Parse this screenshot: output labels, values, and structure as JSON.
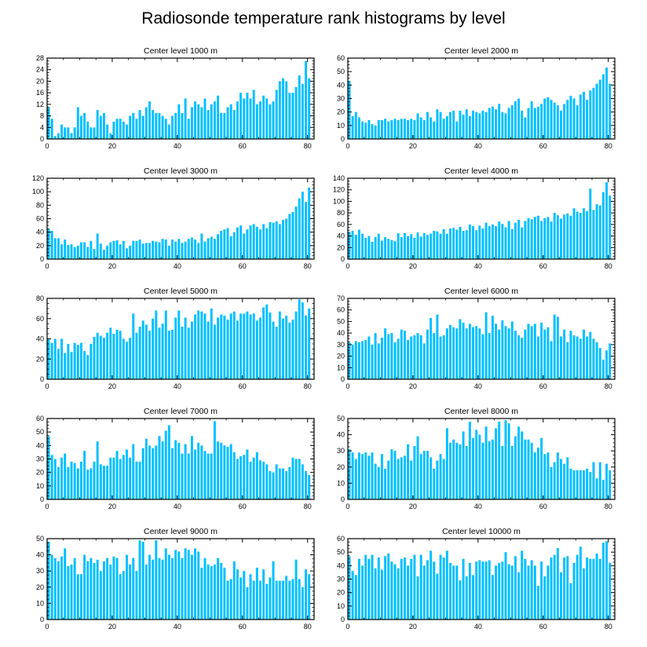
{
  "figure": {
    "title": "Radiosonde temperature rank histograms by level",
    "bar_color": "#00bfff",
    "frame_color": "#000000"
  },
  "chart_data": [
    {
      "type": "bar",
      "title": "Center level 1000 m",
      "x_ticks": [
        0,
        20,
        40,
        60,
        80
      ],
      "xlim": [
        0,
        82
      ],
      "y_ticks": [
        0,
        4,
        8,
        12,
        16,
        20,
        24,
        28
      ],
      "ylim": [
        0,
        28
      ],
      "values": [
        11,
        7,
        1,
        2,
        5,
        4,
        4,
        2,
        4,
        11,
        8,
        9,
        6,
        4,
        4,
        10,
        8,
        9,
        5,
        2,
        6,
        7,
        7,
        6,
        5,
        8,
        9,
        7,
        10,
        8,
        11,
        13,
        10,
        9,
        9,
        8,
        7,
        5,
        8,
        9,
        12,
        9,
        14,
        7,
        11,
        13,
        12,
        11,
        14,
        10,
        12,
        13,
        15,
        9,
        9,
        11,
        12,
        10,
        13,
        16,
        14,
        16,
        14,
        17,
        12,
        13,
        15,
        14,
        12,
        13,
        17,
        20,
        21,
        20,
        16,
        16,
        18,
        22,
        19,
        27,
        21
      ]
    },
    {
      "type": "bar",
      "title": "Center level 2000 m",
      "x_ticks": [
        0,
        20,
        40,
        60,
        80
      ],
      "xlim": [
        0,
        82
      ],
      "y_ticks": [
        0,
        10,
        20,
        30,
        40,
        50,
        60
      ],
      "ylim": [
        0,
        60
      ],
      "values": [
        43,
        17,
        20,
        16,
        13,
        12,
        14,
        11,
        10,
        14,
        14,
        15,
        13,
        14,
        15,
        14,
        15,
        15,
        14,
        15,
        14,
        19,
        16,
        14,
        20,
        16,
        13,
        22,
        20,
        15,
        17,
        20,
        21,
        13,
        21,
        18,
        22,
        17,
        21,
        20,
        19,
        21,
        20,
        23,
        24,
        22,
        26,
        20,
        19,
        23,
        25,
        28,
        30,
        21,
        16,
        23,
        28,
        23,
        24,
        26,
        30,
        31,
        29,
        27,
        25,
        21,
        26,
        29,
        32,
        30,
        25,
        33,
        35,
        29,
        36,
        38,
        41,
        44,
        48,
        53,
        41
      ]
    },
    {
      "type": "bar",
      "title": "Center level 3000 m",
      "x_ticks": [
        0,
        20,
        40,
        60,
        80
      ],
      "xlim": [
        0,
        82
      ],
      "y_ticks": [
        0,
        20,
        40,
        60,
        80,
        100,
        120
      ],
      "ylim": [
        0,
        120
      ],
      "values": [
        45,
        42,
        31,
        31,
        22,
        29,
        21,
        22,
        18,
        20,
        25,
        25,
        18,
        27,
        15,
        38,
        23,
        14,
        20,
        25,
        27,
        28,
        22,
        27,
        16,
        20,
        27,
        27,
        29,
        23,
        24,
        24,
        27,
        26,
        25,
        30,
        29,
        20,
        29,
        26,
        30,
        24,
        26,
        30,
        32,
        29,
        24,
        38,
        26,
        31,
        33,
        30,
        37,
        42,
        44,
        46,
        34,
        40,
        47,
        50,
        38,
        44,
        50,
        52,
        48,
        44,
        52,
        46,
        55,
        54,
        56,
        52,
        58,
        60,
        67,
        70,
        78,
        90,
        100,
        85,
        106
      ]
    },
    {
      "type": "bar",
      "title": "Center level 4000 m",
      "x_ticks": [
        0,
        20,
        40,
        60,
        80
      ],
      "xlim": [
        0,
        82
      ],
      "y_ticks": [
        0,
        20,
        40,
        60,
        80,
        100,
        120,
        140
      ],
      "ylim": [
        0,
        140
      ],
      "values": [
        47,
        49,
        42,
        51,
        44,
        37,
        40,
        30,
        38,
        44,
        32,
        38,
        35,
        33,
        31,
        45,
        38,
        45,
        40,
        43,
        37,
        46,
        39,
        45,
        42,
        44,
        49,
        48,
        44,
        52,
        44,
        53,
        54,
        51,
        56,
        49,
        50,
        60,
        57,
        50,
        58,
        53,
        63,
        57,
        60,
        57,
        65,
        61,
        55,
        66,
        52,
        63,
        68,
        55,
        66,
        71,
        69,
        73,
        75,
        66,
        71,
        73,
        65,
        80,
        76,
        70,
        77,
        79,
        75,
        88,
        82,
        80,
        88,
        83,
        122,
        85,
        95,
        93,
        116,
        133,
        110
      ]
    },
    {
      "type": "bar",
      "title": "Center level 5000 m",
      "x_ticks": [
        0,
        20,
        40,
        60,
        80
      ],
      "xlim": [
        0,
        82
      ],
      "y_ticks": [
        0,
        20,
        40,
        60,
        80
      ],
      "ylim": [
        0,
        80
      ],
      "values": [
        40,
        36,
        40,
        30,
        40,
        26,
        35,
        27,
        36,
        34,
        36,
        28,
        24,
        35,
        42,
        46,
        43,
        41,
        46,
        51,
        45,
        49,
        48,
        40,
        37,
        41,
        65,
        46,
        52,
        58,
        54,
        48,
        60,
        68,
        51,
        55,
        68,
        48,
        49,
        61,
        68,
        52,
        61,
        51,
        57,
        64,
        68,
        67,
        65,
        57,
        70,
        54,
        61,
        64,
        63,
        59,
        65,
        67,
        58,
        65,
        65,
        67,
        64,
        65,
        58,
        61,
        71,
        74,
        66,
        57,
        52,
        67,
        60,
        63,
        56,
        59,
        67,
        79,
        76,
        63,
        70
      ]
    },
    {
      "type": "bar",
      "title": "Center level 6000 m",
      "x_ticks": [
        0,
        20,
        40,
        60,
        80
      ],
      "xlim": [
        0,
        82
      ],
      "y_ticks": [
        0,
        10,
        20,
        30,
        40,
        50,
        60,
        70
      ],
      "ylim": [
        0,
        70
      ],
      "values": [
        32,
        30,
        33,
        32,
        33,
        34,
        37,
        30,
        40,
        31,
        36,
        44,
        39,
        40,
        32,
        35,
        43,
        42,
        34,
        37,
        38,
        40,
        38,
        31,
        43,
        53,
        40,
        56,
        37,
        38,
        44,
        47,
        45,
        44,
        52,
        49,
        44,
        48,
        45,
        46,
        44,
        39,
        58,
        40,
        55,
        48,
        43,
        51,
        46,
        44,
        50,
        42,
        38,
        36,
        43,
        48,
        46,
        48,
        37,
        49,
        43,
        45,
        33,
        56,
        54,
        37,
        43,
        32,
        42,
        38,
        37,
        35,
        43,
        37,
        41,
        35,
        32,
        27,
        17,
        25,
        31
      ]
    },
    {
      "type": "bar",
      "title": "Center level 7000 m",
      "x_ticks": [
        0,
        20,
        40,
        60,
        80
      ],
      "xlim": [
        0,
        82
      ],
      "y_ticks": [
        0,
        10,
        20,
        30,
        40,
        50,
        60
      ],
      "ylim": [
        0,
        60
      ],
      "values": [
        47,
        33,
        30,
        24,
        31,
        34,
        24,
        28,
        27,
        23,
        28,
        36,
        22,
        23,
        28,
        43,
        26,
        25,
        25,
        31,
        31,
        36,
        30,
        33,
        37,
        31,
        41,
        28,
        28,
        38,
        45,
        40,
        38,
        40,
        47,
        43,
        51,
        55,
        38,
        44,
        42,
        34,
        41,
        34,
        47,
        37,
        42,
        40,
        36,
        34,
        34,
        58,
        43,
        42,
        40,
        39,
        41,
        35,
        30,
        32,
        33,
        37,
        28,
        31,
        35,
        29,
        28,
        26,
        21,
        20,
        26,
        23,
        23,
        21,
        24,
        31,
        30,
        30,
        26,
        21,
        18
      ]
    },
    {
      "type": "bar",
      "title": "Center level 8000 m",
      "x_ticks": [
        0,
        20,
        40,
        60,
        80
      ],
      "xlim": [
        0,
        82
      ],
      "y_ticks": [
        0,
        10,
        20,
        30,
        40,
        50
      ],
      "ylim": [
        0,
        50
      ],
      "values": [
        31,
        29,
        25,
        29,
        28,
        29,
        27,
        29,
        22,
        20,
        28,
        19,
        24,
        31,
        30,
        25,
        26,
        27,
        34,
        24,
        33,
        39,
        28,
        30,
        30,
        26,
        19,
        24,
        28,
        25,
        44,
        35,
        37,
        35,
        34,
        42,
        33,
        48,
        38,
        43,
        40,
        35,
        45,
        36,
        37,
        44,
        48,
        33,
        49,
        47,
        33,
        39,
        45,
        42,
        37,
        37,
        35,
        29,
        32,
        38,
        28,
        29,
        20,
        23,
        29,
        25,
        22,
        26,
        19,
        18,
        18,
        18,
        18,
        19,
        17,
        23,
        13,
        23,
        12,
        22,
        18
      ]
    },
    {
      "type": "bar",
      "title": "Center level 9000 m",
      "x_ticks": [
        0,
        20,
        40,
        60,
        80
      ],
      "xlim": [
        0,
        82
      ],
      "y_ticks": [
        0,
        10,
        20,
        30,
        40,
        50
      ],
      "ylim": [
        0,
        50
      ],
      "values": [
        48,
        40,
        38,
        36,
        39,
        44,
        33,
        34,
        38,
        28,
        28,
        40,
        36,
        38,
        35,
        37,
        30,
        36,
        38,
        34,
        39,
        38,
        28,
        30,
        40,
        34,
        38,
        30,
        49,
        48,
        34,
        40,
        37,
        49,
        38,
        37,
        44,
        40,
        38,
        43,
        42,
        38,
        44,
        43,
        40,
        44,
        42,
        32,
        38,
        34,
        33,
        34,
        38,
        35,
        32,
        24,
        25,
        36,
        31,
        26,
        30,
        20,
        28,
        24,
        32,
        24,
        31,
        22,
        26,
        36,
        24,
        24,
        24,
        27,
        24,
        25,
        37,
        25,
        20,
        31,
        28
      ]
    },
    {
      "type": "bar",
      "title": "Center level 10000 m",
      "x_ticks": [
        0,
        20,
        40,
        60,
        80
      ],
      "xlim": [
        0,
        82
      ],
      "y_ticks": [
        0,
        10,
        20,
        30,
        40,
        50,
        60
      ],
      "ylim": [
        0,
        60
      ],
      "values": [
        47,
        36,
        33,
        45,
        40,
        48,
        45,
        48,
        38,
        46,
        37,
        47,
        49,
        43,
        41,
        38,
        45,
        46,
        40,
        45,
        48,
        32,
        48,
        40,
        44,
        51,
        43,
        34,
        48,
        46,
        51,
        42,
        40,
        40,
        29,
        45,
        32,
        42,
        33,
        43,
        44,
        43,
        43,
        44,
        33,
        40,
        42,
        43,
        50,
        41,
        40,
        47,
        35,
        51,
        45,
        40,
        44,
        40,
        25,
        43,
        32,
        40,
        46,
        48,
        53,
        35,
        46,
        47,
        27,
        42,
        48,
        54,
        38,
        46,
        45,
        45,
        49,
        45,
        57,
        58,
        42
      ]
    }
  ]
}
